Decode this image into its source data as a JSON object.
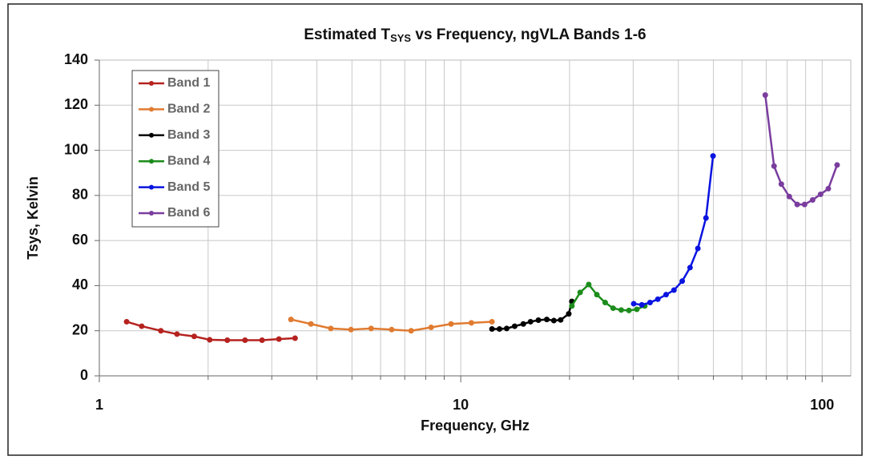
{
  "chart_data": {
    "type": "line",
    "title": [
      "Estimated T",
      "SYS",
      " vs Frequency, ngVLA Bands 1-6"
    ],
    "x_label": "Frequency, GHz",
    "y_label": "Tsys, Kelvin",
    "log_x": true,
    "grid": true,
    "legend": "top-left",
    "xlim": [
      1,
      120
    ],
    "xticks": [
      1,
      10,
      100
    ],
    "xminor_ticks": [
      2,
      3,
      4,
      5,
      6,
      7,
      8,
      9,
      20,
      30,
      40,
      50,
      60,
      70,
      80,
      90
    ],
    "ylim": [
      0,
      140
    ],
    "yticks": [
      0,
      20,
      40,
      60,
      80,
      100,
      120,
      140
    ],
    "series": [
      {
        "name": "Band 1",
        "color": "#b5221f",
        "x": [
          1.19,
          1.31,
          1.48,
          1.64,
          1.83,
          2.02,
          2.26,
          2.53,
          2.82,
          3.14,
          3.48
        ],
        "values": [
          24,
          22,
          20,
          18.5,
          17.5,
          16,
          15.8,
          15.8,
          15.8,
          16.3,
          16.7
        ]
      },
      {
        "name": "Band 2",
        "color": "#e07b30",
        "x": [
          3.39,
          3.85,
          4.37,
          4.97,
          5.65,
          6.44,
          7.29,
          8.28,
          9.4,
          10.7,
          12.2
        ],
        "values": [
          25,
          23,
          21,
          20.5,
          21,
          20.5,
          20,
          21.5,
          23,
          23.5,
          24
        ]
      },
      {
        "name": "Band 3",
        "color": "#000000",
        "x": [
          12.2,
          12.8,
          13.4,
          14.1,
          14.9,
          15.6,
          16.4,
          17.3,
          18.1,
          18.9,
          19.9,
          20.3
        ],
        "values": [
          20.8,
          20.8,
          21,
          22,
          23,
          24,
          24.7,
          25,
          24.5,
          24.8,
          27.5,
          33
        ]
      },
      {
        "name": "Band 4",
        "color": "#1c8c1c",
        "x": [
          20.3,
          21.4,
          22.6,
          23.8,
          25.1,
          26.4,
          27.8,
          29.2,
          30.7,
          32.3
        ],
        "values": [
          31,
          37,
          40.5,
          36,
          32.5,
          30,
          29.2,
          29,
          29.5,
          31
        ]
      },
      {
        "name": "Band 5",
        "color": "#0a14e0",
        "x": [
          30.1,
          31.7,
          33.4,
          35.1,
          37.0,
          38.9,
          41.0,
          43.1,
          45.3,
          47.7,
          49.9
        ],
        "values": [
          32,
          31.5,
          32.5,
          34,
          36,
          38,
          42,
          48,
          56.5,
          70,
          97.5
        ]
      },
      {
        "name": "Band 6",
        "color": "#7a3d9e",
        "x": [
          69.6,
          73.6,
          77.1,
          81.1,
          85.3,
          89.4,
          94.1,
          99.0,
          104,
          110
        ],
        "values": [
          124.5,
          93,
          85,
          79.5,
          76,
          76,
          78,
          80.5,
          83,
          93.5
        ]
      }
    ]
  }
}
